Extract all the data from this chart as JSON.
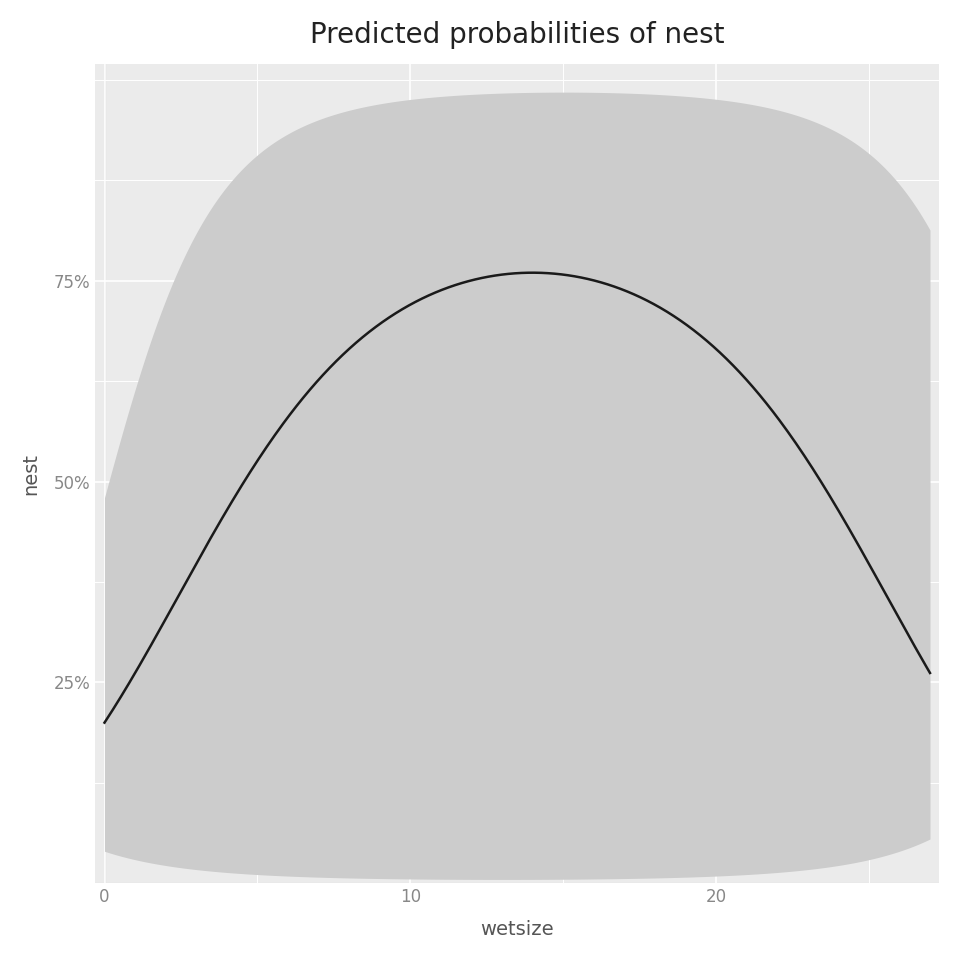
{
  "title": "Predicted probabilities of nest",
  "xlabel": "wetsize",
  "ylabel": "nest",
  "x_ticks": [
    0,
    10,
    20
  ],
  "y_ticks": [
    0.25,
    0.5,
    0.75
  ],
  "y_tick_labels": [
    "25%",
    "50%",
    "75%"
  ],
  "xlim": [
    -0.3,
    27.3
  ],
  "ylim": [
    0.0,
    1.02
  ],
  "background_color": "#ffffff",
  "panel_background": "#ebebeb",
  "grid_color": "#ffffff",
  "ribbon_color": "#cccccc",
  "line_color": "#1a1a1a",
  "line_width": 1.8,
  "title_fontsize": 20,
  "axis_label_fontsize": 14,
  "tick_label_fontsize": 12,
  "tick_label_color": "#888888"
}
